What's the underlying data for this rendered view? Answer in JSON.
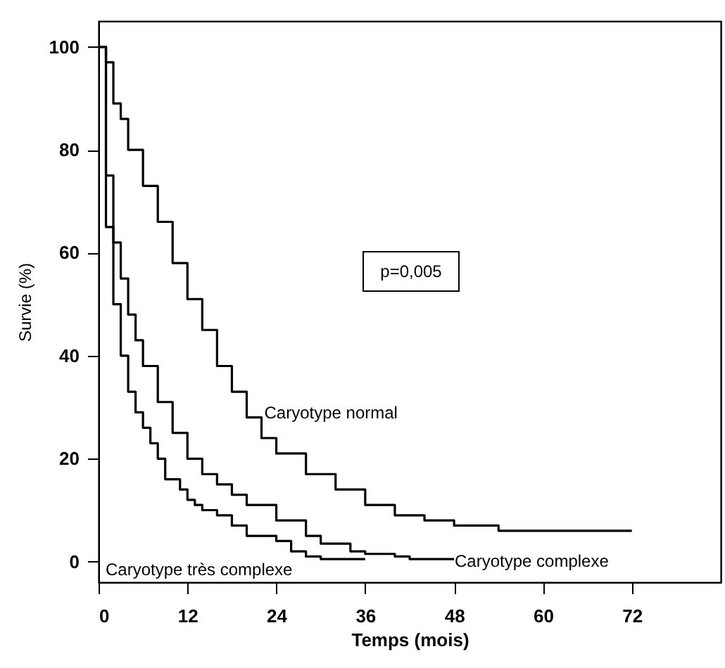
{
  "chart_data": {
    "type": "step",
    "xlabel": "Temps (mois)",
    "ylabel": "Survie (%)",
    "xlim": [
      0,
      84
    ],
    "ylim": [
      -4,
      105
    ],
    "xticks": [
      0,
      12,
      24,
      36,
      48,
      60,
      72
    ],
    "yticks": [
      0,
      20,
      40,
      60,
      80,
      100
    ],
    "grid": false,
    "line_style": "solid",
    "series": [
      {
        "color": "#000000",
        "x": [
          0,
          1,
          2,
          3,
          4,
          6,
          8,
          10,
          12,
          14,
          16,
          18,
          20,
          22,
          24,
          28,
          32,
          36,
          40,
          44,
          48,
          54,
          72
        ],
        "values": [
          100,
          97,
          89,
          86,
          80,
          73,
          66,
          58,
          51,
          45,
          38,
          33,
          28,
          24,
          21,
          17,
          14,
          11,
          9,
          8,
          7,
          6,
          6
        ]
      },
      {
        "color": "#000000",
        "x": [
          0,
          1,
          2,
          3,
          4,
          5,
          6,
          8,
          10,
          12,
          14,
          16,
          18,
          20,
          24,
          28,
          30,
          34,
          36,
          40,
          42,
          48
        ],
        "values": [
          100,
          75,
          62,
          55,
          48,
          43,
          38,
          31,
          25,
          20,
          17,
          15,
          13,
          11,
          8,
          5,
          3.5,
          2,
          1.5,
          1,
          0.5,
          0.5
        ]
      },
      {
        "color": "#000000",
        "x": [
          0,
          1,
          2,
          3,
          4,
          5,
          6,
          7,
          8,
          9,
          11,
          12,
          13,
          14,
          16,
          18,
          20,
          22,
          24,
          26,
          28,
          30,
          36
        ],
        "values": [
          100,
          65,
          50,
          40,
          33,
          29,
          26,
          23,
          20,
          16,
          14,
          12,
          11,
          10,
          9,
          7,
          5,
          5,
          4,
          2,
          1,
          0.5,
          0.5
        ]
      }
    ],
    "annotations": [
      {
        "text": "Caryotype normal",
        "x": 22,
        "y": 27
      },
      "Caryotype complexe",
      "Caryotype très complexe",
      "p=0,005"
    ]
  }
}
